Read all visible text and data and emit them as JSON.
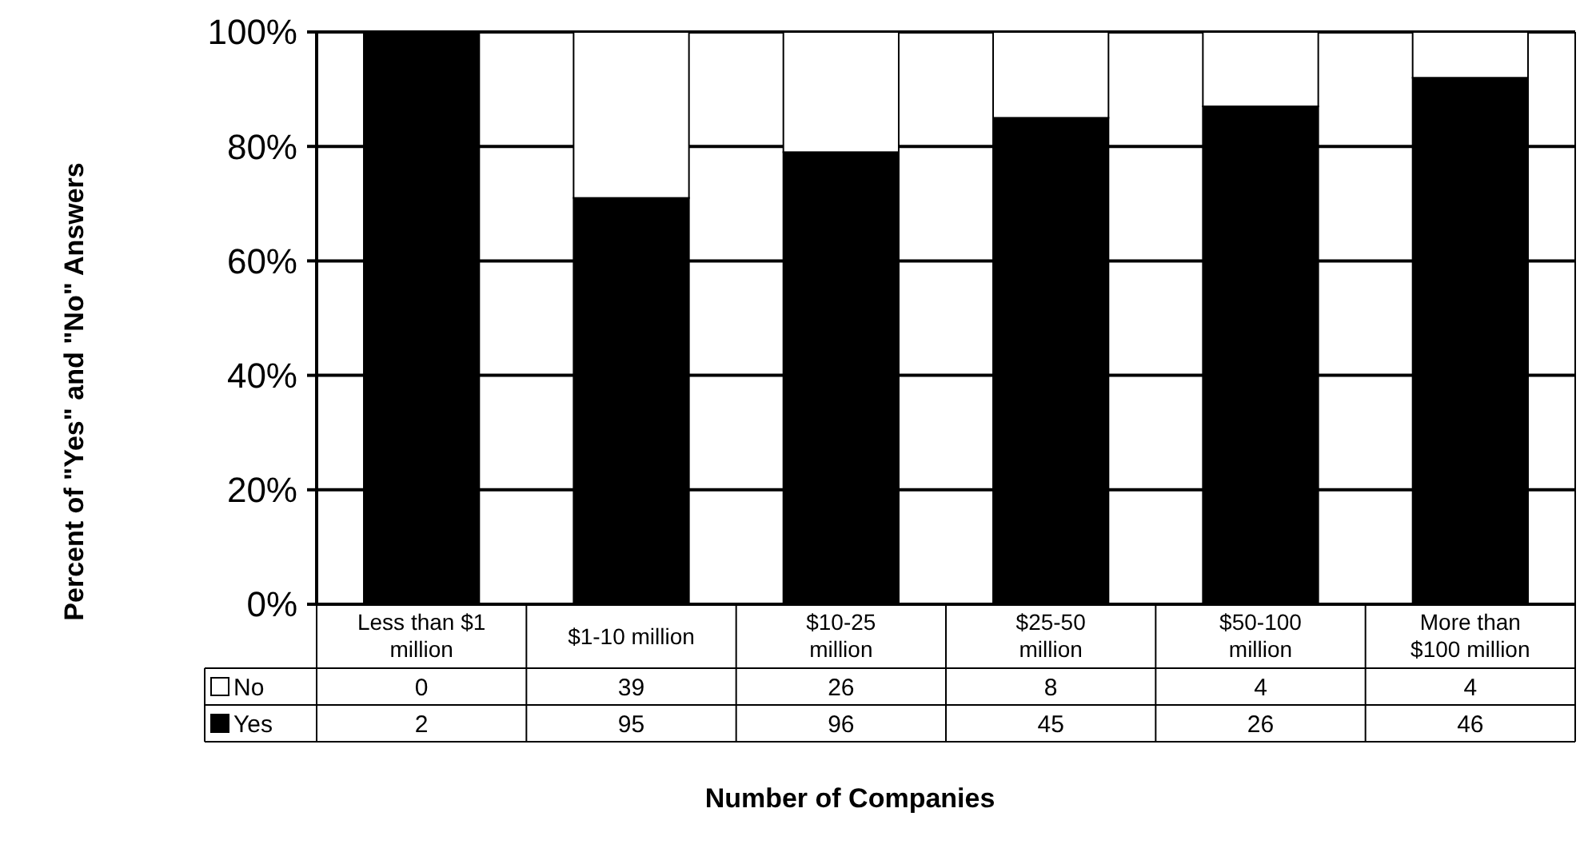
{
  "chart_data": {
    "type": "bar",
    "stacked": true,
    "xlabel": "Number of Companies",
    "ylabel": "Percent of \"Yes\" and \"No\" Answers",
    "categories": [
      "Less than $1 million",
      "$1-10 million",
      "$10-25 million",
      "$25-50 million",
      "$50-100 million",
      "More than $100 million"
    ],
    "series": [
      {
        "name": "Yes",
        "color": "#000000",
        "values": [
          100,
          71,
          79,
          85,
          87,
          92
        ]
      },
      {
        "name": "No",
        "color": "#ffffff",
        "values": [
          0,
          29,
          21,
          15,
          13,
          8
        ]
      }
    ],
    "annotations": [
      "0",
      "39",
      "26",
      "8",
      "4",
      "4",
      "2",
      "95",
      "96",
      "45",
      "26",
      "46"
    ],
    "ylim": [
      0,
      100
    ],
    "yticks": [
      {
        "value": 0,
        "label": "0%"
      },
      {
        "value": 20,
        "label": "20%"
      },
      {
        "value": 40,
        "label": "40%"
      },
      {
        "value": 60,
        "label": "60%"
      },
      {
        "value": 80,
        "label": "80%"
      },
      {
        "value": 100,
        "label": "100%"
      }
    ],
    "grid": "y",
    "legend": "bottom left"
  }
}
